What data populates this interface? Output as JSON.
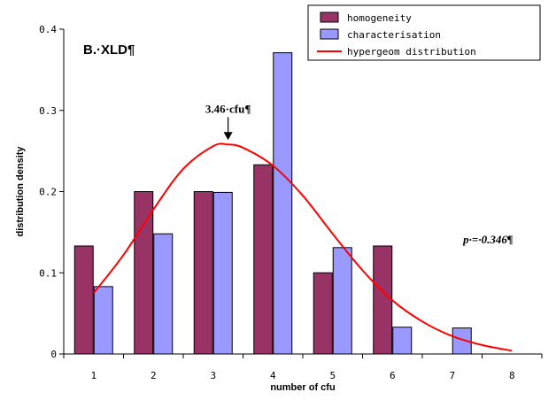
{
  "chart_data": {
    "type": "bar",
    "panel_title": "B.·XLD¶",
    "xlabel": "number of cfu",
    "ylabel": "distribution density",
    "categories": [
      "1",
      "2",
      "3",
      "4",
      "5",
      "6",
      "7",
      "8"
    ],
    "x_positions": [
      1,
      2,
      3,
      4,
      5,
      6,
      7,
      8
    ],
    "ylim": [
      0,
      0.4
    ],
    "yticks": [
      "0",
      "0.1",
      "0.2",
      "0.3",
      "0.4"
    ],
    "ytick_values": [
      0,
      0.1,
      0.2,
      0.3,
      0.4
    ],
    "grid": false,
    "legend_position": "top-right",
    "series": [
      {
        "name": "homogeneity",
        "kind": "bar",
        "color": "#993366",
        "values": [
          0.133,
          0.2,
          0.2,
          0.233,
          0.1,
          0.133,
          0,
          0
        ]
      },
      {
        "name": "characterisation",
        "kind": "bar",
        "color": "#9999ff",
        "values": [
          0.083,
          0.148,
          0.199,
          0.371,
          0.131,
          0.033,
          0.032,
          0
        ]
      },
      {
        "name": "hypergeom distribution",
        "kind": "line",
        "color": "#ff0000",
        "x": [
          1,
          1.5,
          2,
          2.5,
          3,
          3.25,
          3.5,
          4,
          4.5,
          5,
          5.5,
          6,
          6.5,
          7,
          7.5,
          8
        ],
        "values": [
          0.075,
          0.122,
          0.178,
          0.228,
          0.256,
          0.258,
          0.254,
          0.232,
          0.195,
          0.148,
          0.103,
          0.066,
          0.04,
          0.022,
          0.011,
          0.004
        ]
      }
    ],
    "annotations": [
      {
        "text": "3.46·cfu¶",
        "x": 3.25,
        "y": 0.258,
        "arrow": true
      },
      {
        "text": "p·=·0.346¶",
        "x": 7.6,
        "y": 0.136,
        "arrow": false
      }
    ]
  }
}
